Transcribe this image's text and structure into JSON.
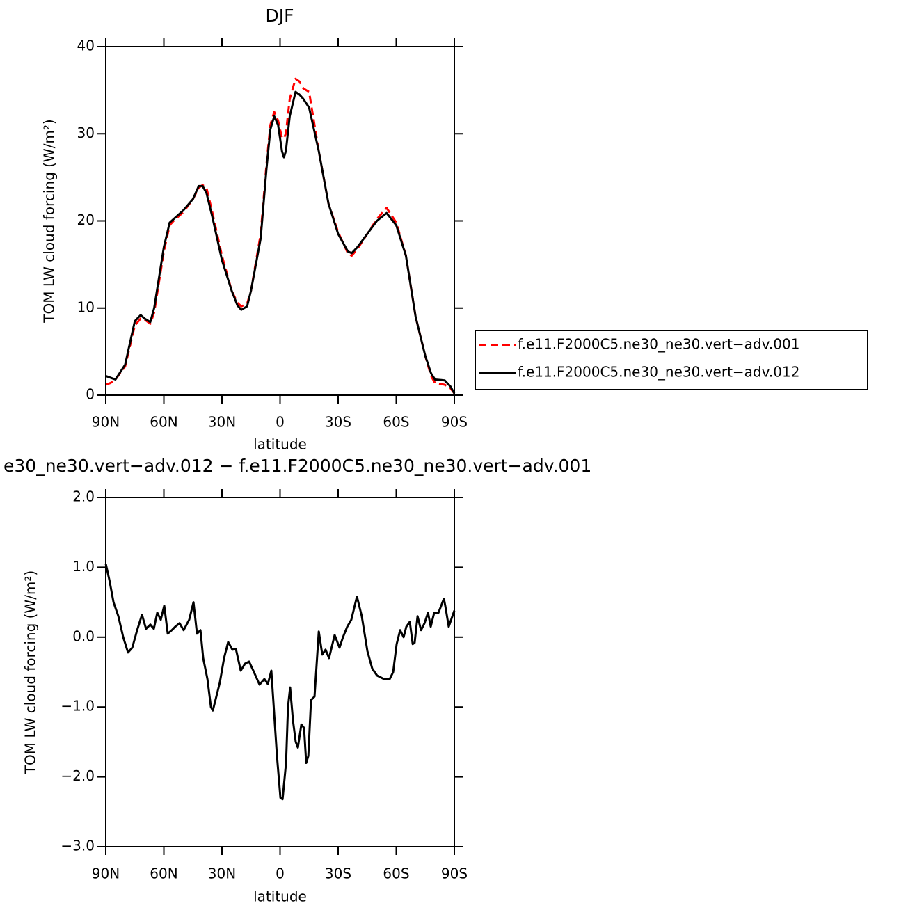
{
  "chart_data": [
    {
      "type": "line",
      "title": "DJF",
      "xlabel": "latitude",
      "ylabel": "TOM LW cloud forcing (W/m²)",
      "x": [
        90,
        87.5,
        85,
        80,
        75,
        72,
        70,
        67,
        65,
        60,
        57,
        55,
        50,
        45,
        42,
        40,
        38,
        35,
        30,
        25,
        22,
        20,
        17,
        15,
        10,
        7,
        5,
        3,
        1,
        -1,
        -2,
        -3,
        -5,
        -8,
        -10,
        -12,
        -15,
        -20,
        -25,
        -30,
        -35,
        -37,
        -40,
        -45,
        -50,
        -55,
        -60,
        -65,
        -70,
        -75,
        -78,
        -80,
        -85,
        -88,
        -90
      ],
      "series": [
        {
          "name": "f.e11.F2000C5.ne30_ne30.vert−adv.001",
          "color": "#ff0000",
          "linestyle": "dashed",
          "values": [
            1.2,
            1.4,
            1.8,
            3.3,
            8.0,
            8.8,
            8.7,
            8.2,
            9.5,
            16.5,
            19.5,
            20,
            21,
            22.5,
            23.8,
            24.1,
            23.8,
            21,
            16,
            12,
            10.6,
            10.2,
            10.5,
            12,
            18.5,
            26.5,
            31,
            32.5,
            31.5,
            29.5,
            29.5,
            30,
            34,
            36.3,
            36,
            35.2,
            34.8,
            28,
            22,
            18.7,
            16.3,
            16,
            16.8,
            18.5,
            20.2,
            21.5,
            19.8,
            16,
            9,
            4.5,
            2.2,
            1.4,
            1.2,
            0.8,
            0.2
          ]
        },
        {
          "name": "f.e11.F2000C5.ne30_ne30.vert−adv.012",
          "color": "#000000",
          "linestyle": "solid",
          "values": [
            2.2,
            2.0,
            1.8,
            3.5,
            8.5,
            9.2,
            8.8,
            8.4,
            10,
            17,
            19.8,
            20.2,
            21.2,
            22.5,
            24,
            24,
            23.2,
            20.5,
            15.5,
            12,
            10.3,
            9.8,
            10.2,
            12,
            18,
            26,
            30.5,
            32,
            31,
            28,
            27.3,
            28,
            32,
            34.8,
            34.5,
            34,
            33,
            28,
            22,
            18.5,
            16.5,
            16.3,
            17,
            18.5,
            20,
            20.9,
            19.5,
            16,
            9,
            4.5,
            2.5,
            1.8,
            1.7,
            1.0,
            0.2
          ]
        }
      ],
      "xlim": [
        90,
        -90
      ],
      "xticks": [
        {
          "value": 90,
          "label": "90N"
        },
        {
          "value": 60,
          "label": "60N"
        },
        {
          "value": 30,
          "label": "30N"
        },
        0,
        {
          "value": -30,
          "label": "30S"
        },
        {
          "value": -60,
          "label": "60S"
        },
        {
          "value": -90,
          "label": "90S"
        }
      ],
      "ylim": [
        0,
        40
      ],
      "yticks": [
        0,
        10,
        20,
        30,
        40
      ],
      "legend": "right"
    },
    {
      "type": "line",
      "title": "e30_ne30.vert−adv.012 − f.e11.F2000C5.ne30_ne30.vert−adv.001",
      "xlabel": "latitude",
      "ylabel": "TOM LW cloud forcing (W/m²)",
      "x": [
        90,
        88,
        86,
        83.5,
        81,
        78.5,
        76.3,
        73.8,
        71.3,
        69.2,
        67,
        65.2,
        63.4,
        61.6,
        59.8,
        58,
        55.9,
        54.1,
        51.9,
        49.8,
        46.9,
        44.7,
        42.9,
        41.1,
        39.7,
        37.5,
        35.7,
        34.7,
        31.1,
        28.9,
        26.8,
        24.6,
        22.8,
        20.3,
        18.1,
        16,
        13.8,
        10.6,
        8.1,
        6.3,
        4.5,
        1.6,
        -0.2,
        -1.3,
        -3.1,
        -4.1,
        -5.2,
        -6.7,
        -8.1,
        -9.2,
        -11,
        -12.4,
        -13.5,
        -14.6,
        -16,
        -17.8,
        -20,
        -21.8,
        -23.5,
        -25.3,
        -28.2,
        -30.7,
        -32.5,
        -34.7,
        -36.8,
        -39.7,
        -42.2,
        -45.1,
        -47.6,
        -50.1,
        -53.7,
        -56.6,
        -58.4,
        -60.2,
        -62,
        -63.8,
        -65.2,
        -67,
        -68.5,
        -69.5,
        -71,
        -72.8,
        -74.6,
        -76.4,
        -77.8,
        -79.6,
        -81.8,
        -84.6,
        -85.3,
        -87.1,
        -90
      ],
      "series": [
        {
          "color": "#000000",
          "linestyle": "solid",
          "values": [
            1.05,
            0.8,
            0.5,
            0.3,
            0.0,
            -0.22,
            -0.15,
            0.1,
            0.32,
            0.12,
            0.18,
            0.12,
            0.35,
            0.25,
            0.45,
            0.05,
            0.1,
            0.15,
            0.2,
            0.1,
            0.25,
            0.5,
            0.05,
            0.1,
            -0.3,
            -0.6,
            -1.0,
            -1.05,
            -0.65,
            -0.3,
            -0.07,
            -0.18,
            -0.17,
            -0.48,
            -0.38,
            -0.35,
            -0.48,
            -0.68,
            -0.6,
            -0.67,
            -0.48,
            -1.7,
            -2.3,
            -2.32,
            -1.8,
            -1.0,
            -0.72,
            -1.2,
            -1.5,
            -1.58,
            -1.25,
            -1.3,
            -1.8,
            -1.7,
            -0.9,
            -0.85,
            0.08,
            -0.25,
            -0.18,
            -0.3,
            0.03,
            -0.15,
            0.0,
            0.15,
            0.25,
            0.58,
            0.3,
            -0.2,
            -0.45,
            -0.55,
            -0.6,
            -0.6,
            -0.5,
            -0.1,
            0.1,
            0.0,
            0.15,
            0.22,
            -0.1,
            -0.08,
            0.3,
            0.1,
            0.2,
            0.35,
            0.15,
            0.35,
            0.35,
            0.55,
            0.45,
            0.15,
            0.38
          ]
        }
      ],
      "xlim": [
        90,
        -90
      ],
      "xticks": [
        {
          "value": 90,
          "label": "90N"
        },
        {
          "value": 60,
          "label": "60N"
        },
        {
          "value": 30,
          "label": "30N"
        },
        0,
        {
          "value": -30,
          "label": "30S"
        },
        {
          "value": -60,
          "label": "60S"
        },
        {
          "value": -90,
          "label": "90S"
        }
      ],
      "ylim": [
        -3,
        2
      ],
      "yticks": [
        {
          "value": -3,
          "label": "−3.0"
        },
        {
          "value": -2,
          "label": "−2.0"
        },
        {
          "value": -1,
          "label": "−1.0"
        },
        {
          "value": 0,
          "label": "0.0"
        },
        {
          "value": 1,
          "label": "1.0"
        },
        {
          "value": 2,
          "label": "2.0"
        }
      ]
    }
  ]
}
